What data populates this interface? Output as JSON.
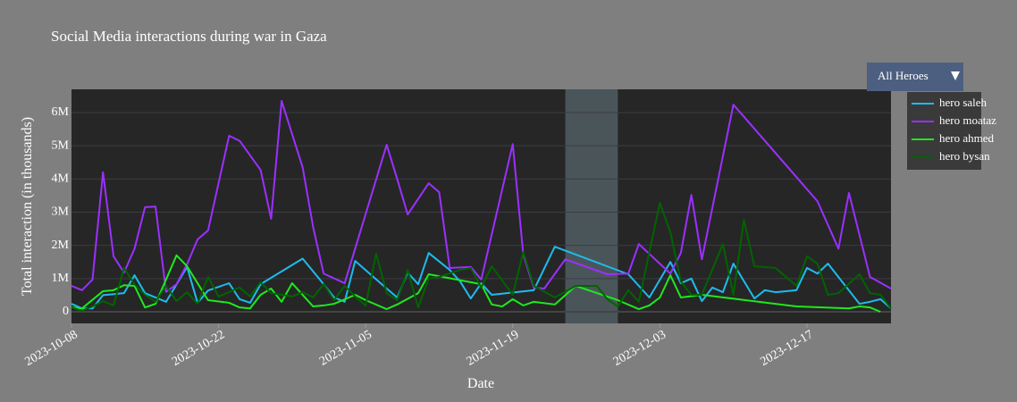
{
  "chart_data": {
    "type": "line",
    "title": "Social Media interactions during war in Gaza",
    "x_label": "Date",
    "y_label": "Total interaction (in thousands)",
    "dropdown": "All Heroes",
    "xlim": [
      "2023-10-08",
      "2023-12-25"
    ],
    "xticks": [
      "2023-10-08",
      "2023-10-22",
      "2023-11-05",
      "2023-11-19",
      "2023-12-03",
      "2023-12-17"
    ],
    "ylim": [
      -350000,
      6700000
    ],
    "yticks": [
      0,
      {
        "value": 1000000,
        "label": "1M"
      },
      {
        "value": 2000000,
        "label": "2M"
      },
      {
        "value": 3000000,
        "label": "3M"
      },
      {
        "value": 4000000,
        "label": "4M"
      },
      {
        "value": 5000000,
        "label": "5M"
      },
      {
        "value": 6000000,
        "label": "6M"
      }
    ],
    "grid": true,
    "shaded_x": [
      "2023-11-24",
      "2023-11-29"
    ],
    "shaded_color": "#4a555a",
    "legend_position": "right",
    "series": [
      {
        "name": "hero saleh",
        "color": "#1ebbee",
        "x": [
          "2023-10-08",
          "2023-10-09",
          "2023-10-10",
          "2023-10-11",
          "2023-10-13",
          "2023-10-14",
          "2023-10-15",
          "2023-10-17",
          "2023-10-19",
          "2023-10-20",
          "2023-10-21",
          "2023-10-23",
          "2023-10-24",
          "2023-10-25",
          "2023-10-26",
          "2023-10-30",
          "2023-11-01",
          "2023-11-02",
          "2023-11-03",
          "2023-11-04",
          "2023-11-07",
          "2023-11-08",
          "2023-11-09",
          "2023-11-10",
          "2023-11-11",
          "2023-11-13",
          "2023-11-14",
          "2023-11-15",
          "2023-11-16",
          "2023-11-17",
          "2023-11-21",
          "2023-11-23",
          "2023-11-30",
          "2023-12-02",
          "2023-12-04",
          "2023-12-05",
          "2023-12-06",
          "2023-12-07",
          "2023-12-08",
          "2023-12-09",
          "2023-12-10",
          "2023-12-12",
          "2023-12-13",
          "2023-12-14",
          "2023-12-16",
          "2023-12-17",
          "2023-12-18",
          "2023-12-19",
          "2023-12-22",
          "2023-12-23",
          "2023-12-24",
          "2023-12-25"
        ],
        "values": [
          240000,
          100000,
          100000,
          500000,
          560000,
          1100000,
          560000,
          300000,
          1350000,
          270000,
          640000,
          860000,
          380000,
          270000,
          830000,
          1600000,
          830000,
          430000,
          300000,
          1530000,
          700000,
          430000,
          1180000,
          830000,
          1770000,
          1260000,
          910000,
          400000,
          860000,
          510000,
          650000,
          1960000,
          1130000,
          430000,
          1500000,
          860000,
          1000000,
          320000,
          730000,
          590000,
          1450000,
          400000,
          650000,
          590000,
          650000,
          1320000,
          1150000,
          1450000,
          240000,
          300000,
          380000,
          100000
        ]
      },
      {
        "name": "hero moataz",
        "color": "#9b30ff",
        "x": [
          "2023-10-08",
          "2023-10-09",
          "2023-10-10",
          "2023-10-11",
          "2023-10-12",
          "2023-10-13",
          "2023-10-14",
          "2023-10-15",
          "2023-10-16",
          "2023-10-17",
          "2023-10-18",
          "2023-10-19",
          "2023-10-20",
          "2023-10-21",
          "2023-10-23",
          "2023-10-24",
          "2023-10-26",
          "2023-10-27",
          "2023-10-28",
          "2023-10-30",
          "2023-10-31",
          "2023-11-01",
          "2023-11-03",
          "2023-11-07",
          "2023-11-08",
          "2023-11-09",
          "2023-11-11",
          "2023-11-12",
          "2023-11-13",
          "2023-11-15",
          "2023-11-16",
          "2023-11-19",
          "2023-11-20",
          "2023-11-21",
          "2023-11-22",
          "2023-11-24",
          "2023-11-28",
          "2023-11-30",
          "2023-12-01",
          "2023-12-04",
          "2023-12-05",
          "2023-12-06",
          "2023-12-07",
          "2023-12-10",
          "2023-12-18",
          "2023-12-20",
          "2023-12-21",
          "2023-12-23",
          "2023-12-25"
        ],
        "values": [
          780000,
          650000,
          970000,
          4200000,
          1670000,
          1180000,
          1900000,
          3150000,
          3170000,
          600000,
          830000,
          1430000,
          2180000,
          2450000,
          5300000,
          5150000,
          4270000,
          2800000,
          6350000,
          4350000,
          2550000,
          1150000,
          860000,
          5030000,
          4000000,
          2930000,
          3870000,
          3600000,
          1320000,
          1350000,
          970000,
          5050000,
          1720000,
          730000,
          700000,
          1580000,
          1130000,
          1150000,
          2040000,
          1150000,
          1770000,
          3520000,
          1580000,
          6240000,
          3330000,
          1900000,
          3580000,
          1050000,
          700000
        ]
      },
      {
        "name": "hero ahmed",
        "color": "#1fe81f",
        "x": [
          "2023-10-08",
          "2023-10-09",
          "2023-10-11",
          "2023-10-12",
          "2023-10-13",
          "2023-10-14",
          "2023-10-15",
          "2023-10-16",
          "2023-10-18",
          "2023-10-19",
          "2023-10-21",
          "2023-10-23",
          "2023-10-24",
          "2023-10-25",
          "2023-10-26",
          "2023-10-27",
          "2023-10-28",
          "2023-10-29",
          "2023-10-31",
          "2023-11-01",
          "2023-11-02",
          "2023-11-04",
          "2023-11-05",
          "2023-11-07",
          "2023-11-08",
          "2023-11-10",
          "2023-11-11",
          "2023-11-16",
          "2023-11-17",
          "2023-11-18",
          "2023-11-19",
          "2023-11-20",
          "2023-11-21",
          "2023-11-23",
          "2023-11-25",
          "2023-11-29",
          "2023-12-01",
          "2023-12-02",
          "2023-12-03",
          "2023-12-04",
          "2023-12-05",
          "2023-12-07",
          "2023-12-16",
          "2023-12-21",
          "2023-12-22",
          "2023-12-23",
          "2023-12-24"
        ],
        "values": [
          130000,
          100000,
          620000,
          650000,
          800000,
          780000,
          130000,
          240000,
          1700000,
          1370000,
          350000,
          270000,
          130000,
          100000,
          510000,
          700000,
          300000,
          860000,
          160000,
          190000,
          240000,
          510000,
          350000,
          80000,
          220000,
          560000,
          1130000,
          830000,
          220000,
          160000,
          380000,
          190000,
          300000,
          220000,
          780000,
          350000,
          80000,
          190000,
          430000,
          1100000,
          430000,
          510000,
          160000,
          100000,
          160000,
          130000,
          0
        ]
      },
      {
        "name": "hero bysan",
        "color": "#006400",
        "x": [
          "2023-10-08",
          "2023-10-09",
          "2023-10-10",
          "2023-10-11",
          "2023-10-12",
          "2023-10-13",
          "2023-10-14",
          "2023-10-15",
          "2023-10-16",
          "2023-10-17",
          "2023-10-18",
          "2023-10-19",
          "2023-10-20",
          "2023-10-21",
          "2023-10-22",
          "2023-10-24",
          "2023-10-25",
          "2023-10-26",
          "2023-10-27",
          "2023-10-29",
          "2023-10-30",
          "2023-10-31",
          "2023-11-01",
          "2023-11-02",
          "2023-11-03",
          "2023-11-04",
          "2023-11-05",
          "2023-11-06",
          "2023-11-07",
          "2023-11-08",
          "2023-11-09",
          "2023-11-10",
          "2023-11-11",
          "2023-11-12",
          "2023-11-14",
          "2023-11-15",
          "2023-11-16",
          "2023-11-17",
          "2023-11-19",
          "2023-11-20",
          "2023-11-21",
          "2023-11-23",
          "2023-11-25",
          "2023-11-27",
          "2023-11-28",
          "2023-11-29",
          "2023-11-30",
          "2023-12-01",
          "2023-12-03",
          "2023-12-04",
          "2023-12-05",
          "2023-12-06",
          "2023-12-07",
          "2023-12-09",
          "2023-12-10",
          "2023-12-11",
          "2023-12-12",
          "2023-12-14",
          "2023-12-16",
          "2023-12-17",
          "2023-12-18",
          "2023-12-19",
          "2023-12-20",
          "2023-12-22",
          "2023-12-23",
          "2023-12-24",
          "2023-12-25"
        ],
        "values": [
          130000,
          30000,
          160000,
          320000,
          190000,
          1320000,
          830000,
          510000,
          300000,
          780000,
          320000,
          590000,
          240000,
          1050000,
          460000,
          730000,
          460000,
          890000,
          560000,
          460000,
          590000,
          430000,
          830000,
          350000,
          780000,
          460000,
          190000,
          1750000,
          560000,
          350000,
          1260000,
          130000,
          1000000,
          1050000,
          1260000,
          1320000,
          730000,
          1370000,
          510000,
          1800000,
          780000,
          430000,
          780000,
          780000,
          380000,
          160000,
          650000,
          300000,
          3280000,
          2400000,
          910000,
          510000,
          510000,
          2040000,
          510000,
          2770000,
          1370000,
          1320000,
          780000,
          1670000,
          1450000,
          510000,
          560000,
          1130000,
          560000,
          510000,
          100000
        ]
      }
    ]
  }
}
